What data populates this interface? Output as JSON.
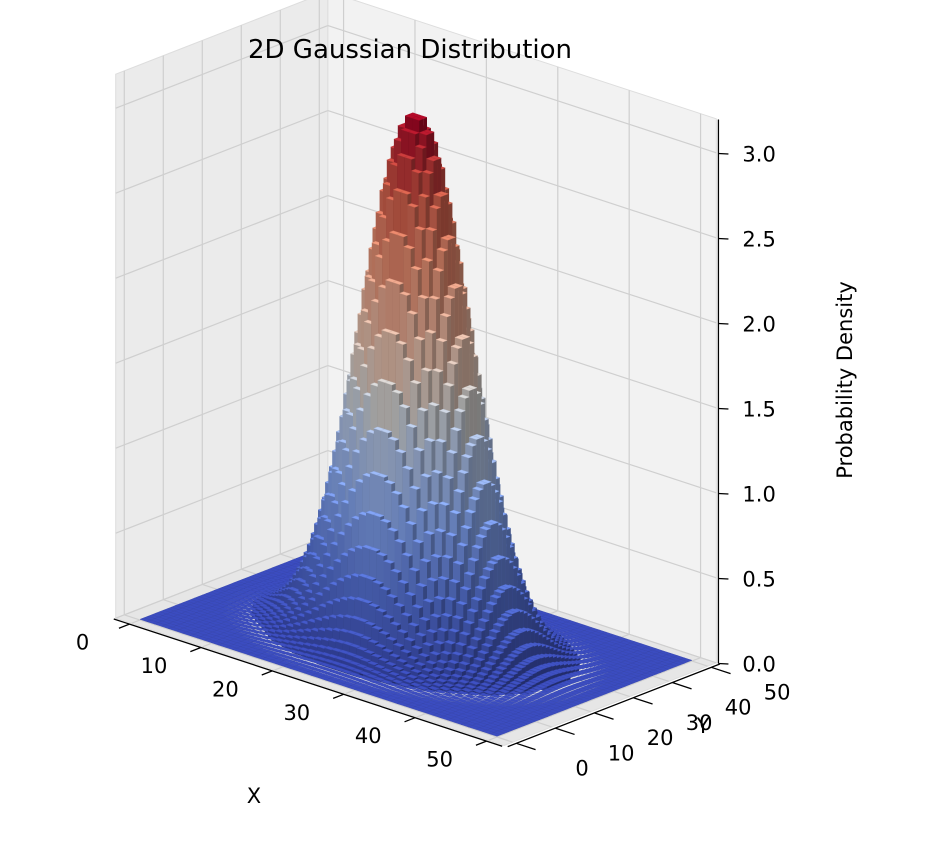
{
  "chart_data": {
    "type": "bar3d",
    "title": "2D Gaussian Distribution",
    "xlabel": "X",
    "ylabel": "Y",
    "zlabel": "Probability Density",
    "x_ticks": [
      "0",
      "10",
      "20",
      "30",
      "40",
      "50"
    ],
    "y_ticks": [
      "0",
      "10",
      "20",
      "30",
      "40",
      "50"
    ],
    "z_ticks": [
      "0.0",
      "0.5",
      "1.0",
      "1.5",
      "2.0",
      "2.5",
      "3.0"
    ],
    "xlim": [
      0,
      50
    ],
    "ylim": [
      0,
      50
    ],
    "zlim": [
      0,
      3.2
    ],
    "grid_size": 50,
    "gaussian": {
      "peak": 3.1,
      "center_x": 25,
      "center_y": 25,
      "sigma": 6.5
    },
    "colormap": "coolwarm",
    "colors": {
      "low": "#3b4cc0",
      "mid": "#dddddd",
      "high": "#b40426",
      "pane": "#f2f2f2",
      "grid": "#cfcfcf"
    },
    "grid": true
  }
}
